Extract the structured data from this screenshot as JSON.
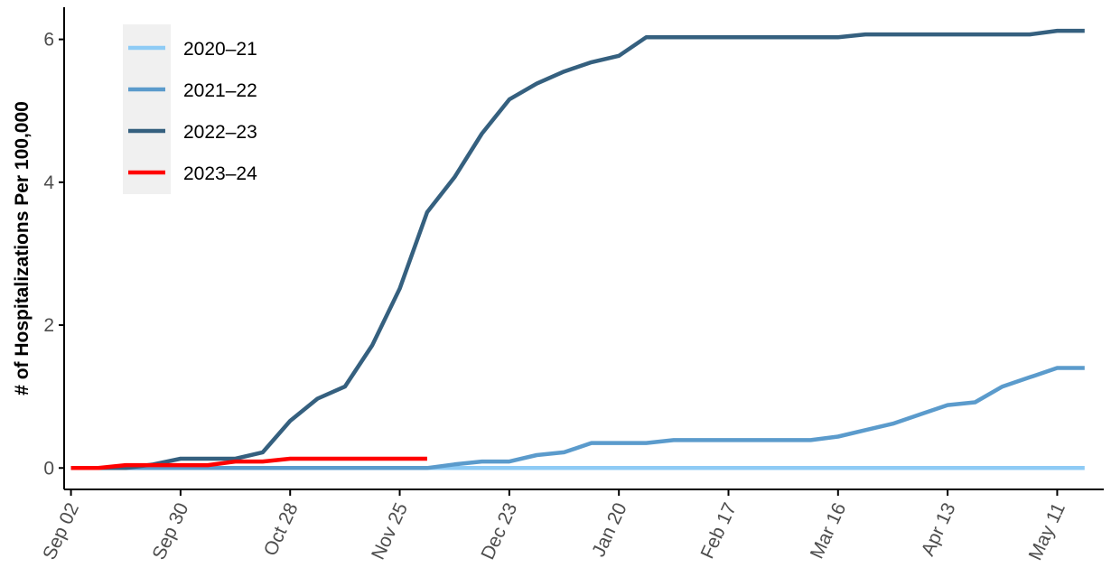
{
  "chart_data": {
    "type": "line",
    "title": "",
    "xlabel": "",
    "ylabel": "# of Hospitalizations Per 100,000",
    "x_tick_labels": [
      "Sep 02",
      "Sep 30",
      "Oct 28",
      "Nov 25",
      "Dec 23",
      "Jan 20",
      "Feb 17",
      "Mar 16",
      "Apr 13",
      "May 11"
    ],
    "y_ticks": [
      0,
      2,
      4,
      6
    ],
    "xlim": [
      -0.25,
      37.7
    ],
    "ylim": [
      -0.3,
      6.45
    ],
    "grid": false,
    "legend_position": "top-left",
    "x_unit_note": "week index from Sep 02",
    "series": [
      {
        "name": "2020–21",
        "color": "#8ecbf5",
        "x": [
          0,
          37
        ],
        "values": [
          0.0,
          0.0
        ]
      },
      {
        "name": "2021–22",
        "color": "#5b9bcc",
        "x": [
          0,
          13,
          14,
          15,
          16,
          17,
          18,
          19,
          20,
          21,
          22,
          23,
          24,
          25,
          26,
          27,
          28,
          29,
          30,
          31,
          32,
          33,
          34,
          35,
          36,
          37
        ],
        "values": [
          0.0,
          0.0,
          0.05,
          0.09,
          0.09,
          0.18,
          0.22,
          0.35,
          0.35,
          0.35,
          0.39,
          0.39,
          0.39,
          0.39,
          0.39,
          0.39,
          0.44,
          0.53,
          0.62,
          0.75,
          0.88,
          0.92,
          1.14,
          1.27,
          1.4,
          1.4
        ]
      },
      {
        "name": "2022–23",
        "color": "#35607f",
        "x": [
          0,
          1,
          2,
          3,
          4,
          5,
          6,
          7,
          8,
          9,
          10,
          11,
          12,
          13,
          14,
          15,
          16,
          17,
          18,
          19,
          20,
          21,
          22,
          23,
          24,
          25,
          26,
          27,
          28,
          29,
          30,
          31,
          32,
          33,
          34,
          35,
          36,
          37
        ],
        "values": [
          0.0,
          0.0,
          0.0,
          0.05,
          0.13,
          0.13,
          0.13,
          0.22,
          0.66,
          0.97,
          1.14,
          1.72,
          2.51,
          3.58,
          4.07,
          4.68,
          5.16,
          5.38,
          5.55,
          5.68,
          5.77,
          6.03,
          6.03,
          6.03,
          6.03,
          6.03,
          6.03,
          6.03,
          6.03,
          6.07,
          6.07,
          6.07,
          6.07,
          6.07,
          6.07,
          6.07,
          6.12,
          6.12
        ]
      },
      {
        "name": "2023–24",
        "color": "#ff0000",
        "x": [
          0,
          1,
          2,
          3,
          4,
          5,
          6,
          7,
          8,
          9,
          10,
          11,
          12,
          13
        ],
        "values": [
          0.0,
          0.0,
          0.04,
          0.04,
          0.04,
          0.04,
          0.09,
          0.09,
          0.13,
          0.13,
          0.13,
          0.13,
          0.13,
          0.13
        ]
      }
    ]
  }
}
